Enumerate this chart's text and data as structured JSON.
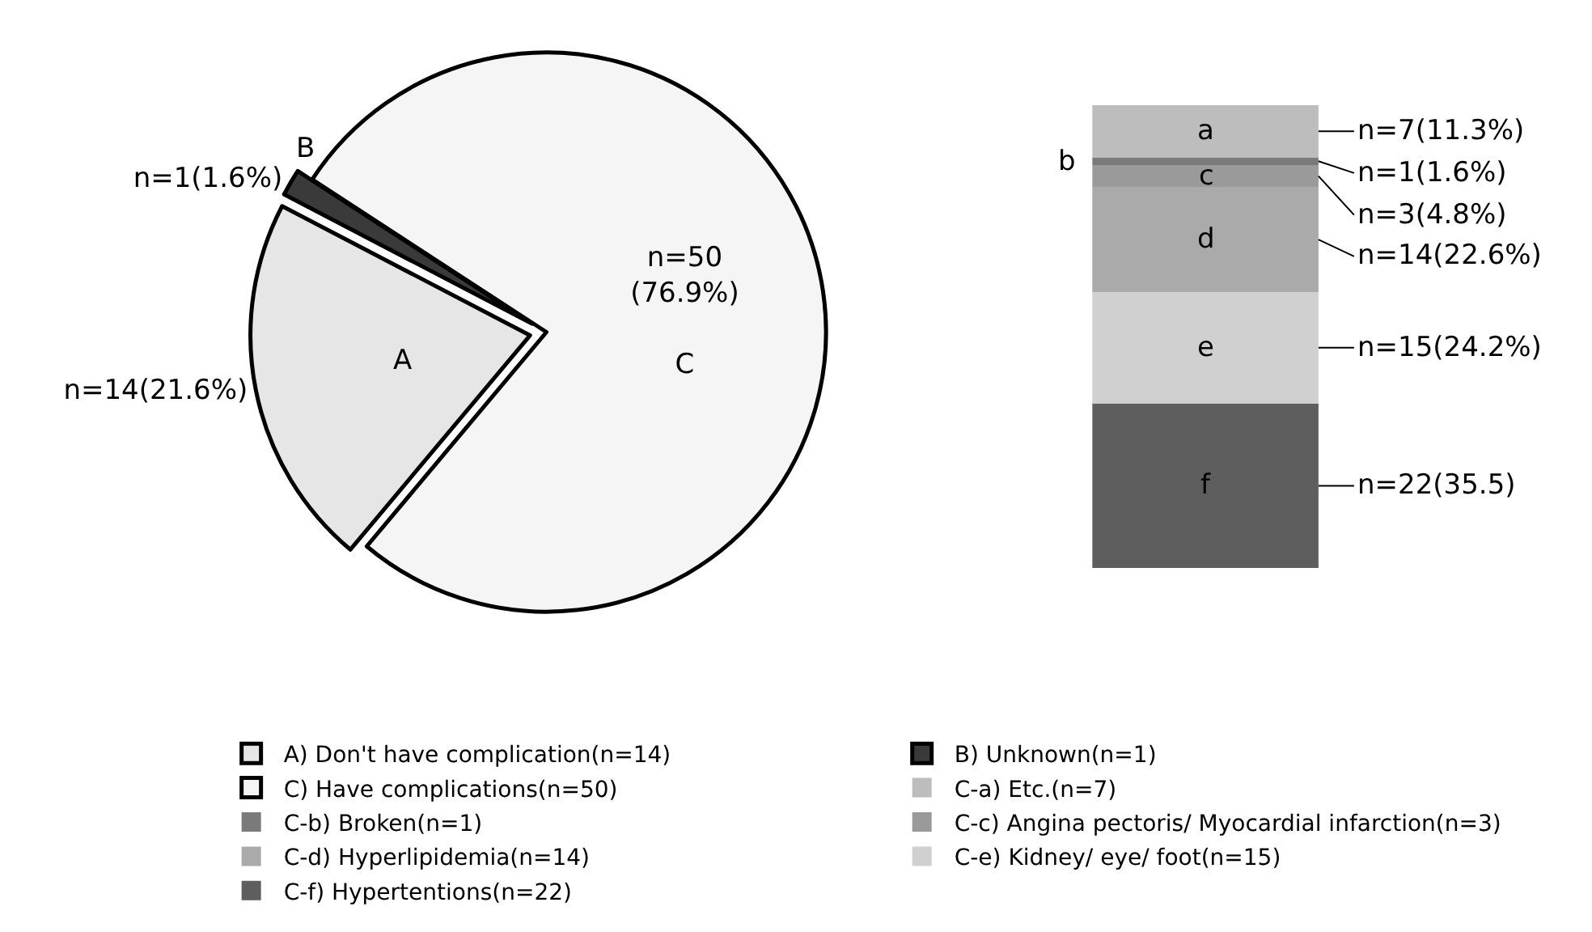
{
  "chart_data": [
    {
      "type": "pie",
      "categories": [
        "A) Don't have complication(n=14)",
        "B) Unknown(n=1)",
        "C) Have complications(n=50)"
      ],
      "values": [
        14,
        1,
        50
      ],
      "colors": [
        "#e6e6e6",
        "#3a3a3a",
        "#f5f5f5"
      ],
      "value_labels": [
        "n=14(21.6%)",
        "n=1(1.6%)",
        "n=50\n(76.9%)"
      ],
      "annotations": [
        "A",
        "B",
        "C"
      ],
      "legend": "bottom"
    },
    {
      "type": "bar",
      "stacked": true,
      "categories": [
        null
      ],
      "series": [
        {
          "name": "C-f) Hypertentions(n=22)",
          "color": "#5e5e5e",
          "values": [
            22
          ],
          "value_labels": [
            "n=22(35.5)"
          ]
        },
        {
          "name": "C-e) Kidney/ eye/ foot(n=15)",
          "color": "#d0d0d0",
          "values": [
            15
          ],
          "value_labels": [
            "n=15(24.2%)"
          ]
        },
        {
          "name": "C-d) Hyperlipidemia(n=14)",
          "color": "#aaaaaa",
          "values": [
            14
          ],
          "value_labels": [
            "n=14(22.6%)"
          ]
        },
        {
          "name": "C-c) Angina pectoris/ Myocardial infarction(n=3)",
          "color": "#9a9a9a",
          "values": [
            3
          ],
          "value_labels": [
            "n=3(4.8%)"
          ]
        },
        {
          "name": "C-b) Broken(n=1)",
          "color": "#7a7a7a",
          "values": [
            1
          ],
          "value_labels": [
            "n=1(1.6%)"
          ]
        },
        {
          "name": "C-a) Etc.(n=7)",
          "color": "#bdbdbd",
          "values": [
            7
          ],
          "value_labels": [
            "n=7(11.3%)"
          ]
        }
      ],
      "annotations": [
        "f",
        "e",
        "d",
        "c",
        "b",
        "a"
      ],
      "legend": "bottom"
    }
  ]
}
